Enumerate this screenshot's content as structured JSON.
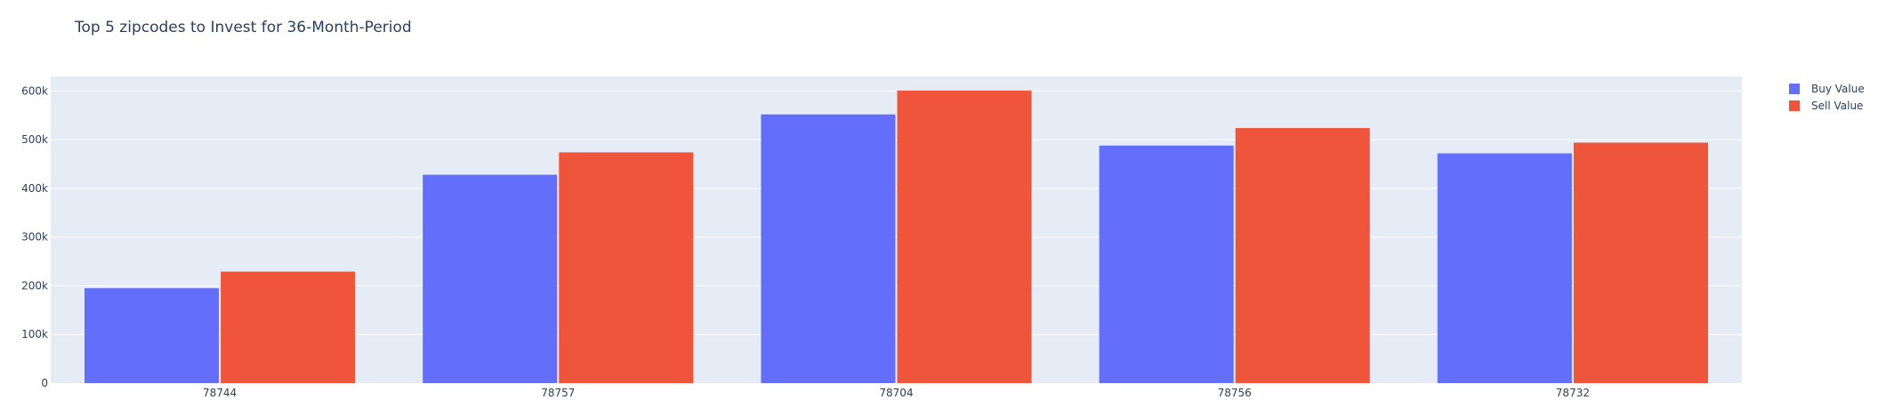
{
  "chart_data": {
    "type": "bar",
    "title": "Top 5 zipcodes to Invest for 36-Month-Period",
    "xlabel": "",
    "ylabel": "",
    "categories": [
      "78744",
      "78757",
      "78704",
      "78756",
      "78732"
    ],
    "series": [
      {
        "name": "Buy Value",
        "color": "#636efa",
        "values": [
          195000,
          428000,
          552000,
          488000,
          472000
        ]
      },
      {
        "name": "Sell Value",
        "color": "#ef553b",
        "values": [
          229000,
          474000,
          601000,
          524000,
          494000
        ]
      }
    ],
    "ylim": [
      0,
      630000
    ],
    "yticks": [
      0,
      100000,
      200000,
      300000,
      400000,
      500000,
      600000
    ],
    "ytick_labels": [
      "0",
      "100k",
      "200k",
      "300k",
      "400k",
      "500k",
      "600k"
    ],
    "grid": true,
    "legend_position": "top-right",
    "plot_background": "#e5ecf6",
    "grid_color": "#ffffff",
    "text_color": "#2a3f5f"
  }
}
